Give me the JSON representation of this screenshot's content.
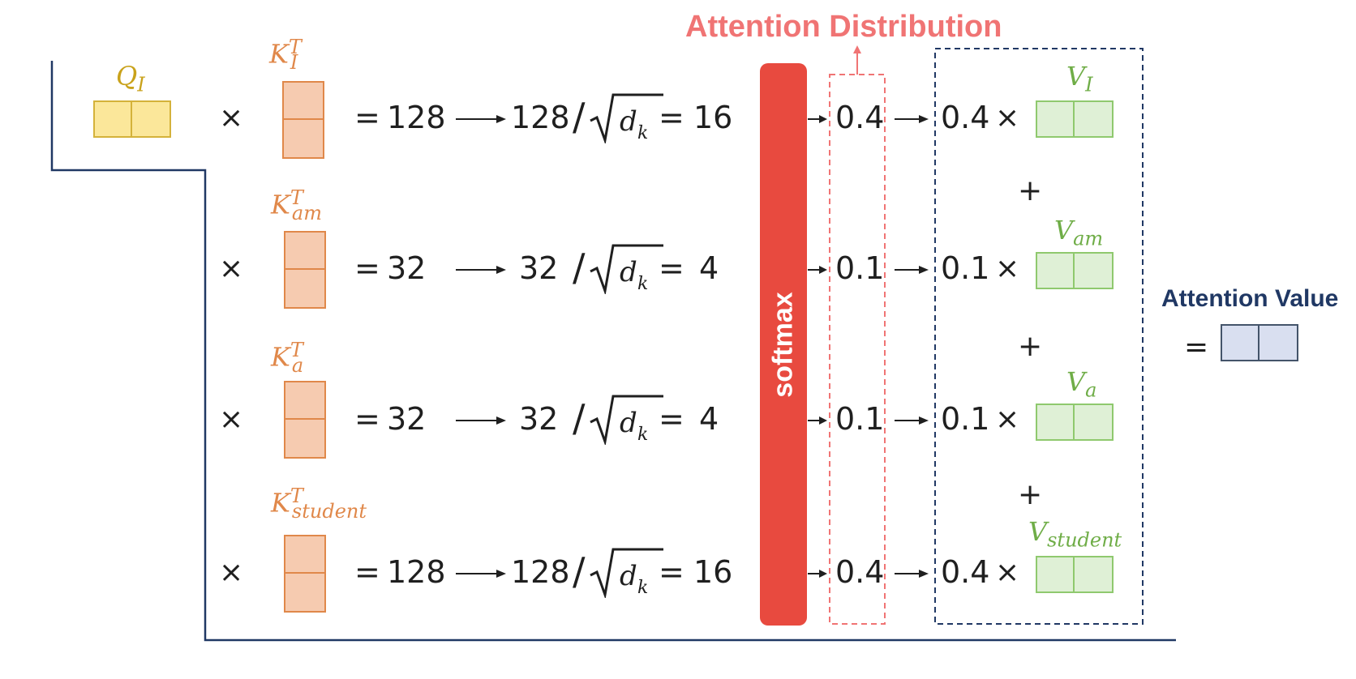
{
  "title_top": "Attention Distribution",
  "title_right": "Attention Value",
  "softmax_label": "softmax",
  "query": {
    "symbol": "Q",
    "sub": "I"
  },
  "rows": [
    {
      "key_sym": "K",
      "key_sub": "I",
      "key_sup": "T",
      "score": "128",
      "scaled": "16",
      "prob": "0.4",
      "weight": "0.4",
      "v_sym": "V",
      "v_sub": "I"
    },
    {
      "key_sym": "K",
      "key_sub": "am",
      "key_sup": "T",
      "score": "32",
      "scaled": "4",
      "prob": "0.1",
      "weight": "0.1",
      "v_sym": "V",
      "v_sub": "am"
    },
    {
      "key_sym": "K",
      "key_sub": "a",
      "key_sup": "T",
      "score": "32",
      "scaled": "4",
      "prob": "0.1",
      "weight": "0.1",
      "v_sym": "V",
      "v_sub": "a"
    },
    {
      "key_sym": "K",
      "key_sub": "student",
      "key_sup": "T",
      "score": "128",
      "scaled": "16",
      "prob": "0.4",
      "weight": "0.4",
      "v_sym": "V",
      "v_sub": "student"
    }
  ],
  "ops": {
    "times": "×",
    "equals": "=",
    "plus": "+",
    "div": "/",
    "dk": "d",
    "dk_sub": "k"
  },
  "colors": {
    "query": "#fbe79a",
    "query_border": "#d4b23a",
    "key": "#f6cbb0",
    "key_border": "#e0884a",
    "value": "#dff0d6",
    "value_border": "#8fc96e",
    "result": "#d9dff0",
    "result_border": "#44546a",
    "softmax": "#e84a3f",
    "dist_border": "#f07474",
    "value_border_box": "#203864"
  }
}
